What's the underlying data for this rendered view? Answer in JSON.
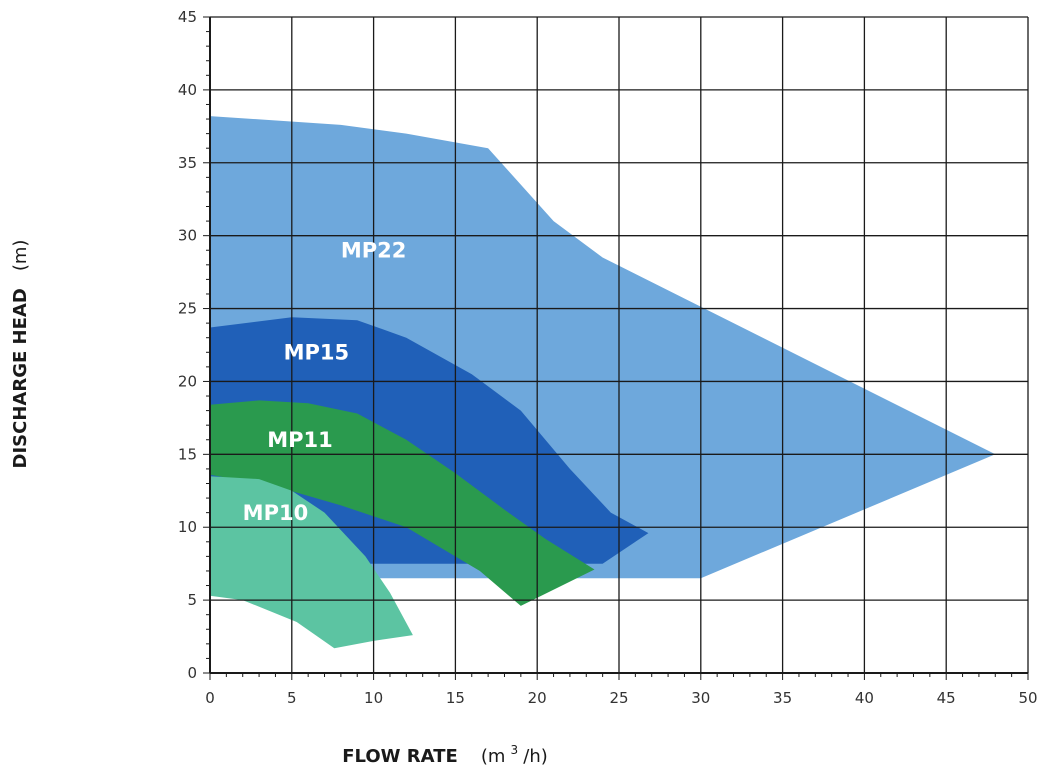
{
  "chart_data": {
    "type": "area",
    "title": "",
    "xlabel": {
      "main": "FLOW RATE",
      "unit_prefix": "(m",
      "unit_sup": "3",
      "unit_suffix": "/h)"
    },
    "ylabel": {
      "main": "DISCHARGE HEAD",
      "unit": "(m)"
    },
    "xlim": [
      0,
      50
    ],
    "ylim": [
      0,
      45
    ],
    "x_ticks": [
      0,
      5,
      10,
      15,
      20,
      25,
      30,
      35,
      40,
      45,
      50
    ],
    "y_ticks": [
      0,
      5,
      10,
      15,
      20,
      25,
      30,
      35,
      40,
      45
    ],
    "grid": true,
    "series": [
      {
        "name": "MP22",
        "color": "#6ea8dc",
        "label_at": [
          10,
          28.5
        ],
        "polygon": [
          [
            0,
            38.2
          ],
          [
            8,
            37.6
          ],
          [
            12,
            37
          ],
          [
            17,
            36
          ],
          [
            21,
            31
          ],
          [
            24,
            28.5
          ],
          [
            48,
            15
          ],
          [
            30,
            6.5
          ],
          [
            0,
            6.5
          ]
        ]
      },
      {
        "name": "MP15",
        "color": "#2060b8",
        "label_at": [
          6.5,
          21.5
        ],
        "polygon": [
          [
            0,
            23.7
          ],
          [
            5,
            24.4
          ],
          [
            9,
            24.2
          ],
          [
            12,
            23
          ],
          [
            16,
            20.5
          ],
          [
            19,
            18
          ],
          [
            22,
            14
          ],
          [
            24.5,
            11
          ],
          [
            26.8,
            9.6
          ],
          [
            24,
            7.5
          ],
          [
            0,
            7.5
          ]
        ]
      },
      {
        "name": "MP11",
        "color": "#2a9a4e",
        "label_at": [
          5.5,
          15.5
        ],
        "polygon": [
          [
            0,
            18.4
          ],
          [
            3,
            18.7
          ],
          [
            6,
            18.5
          ],
          [
            9,
            17.8
          ],
          [
            12,
            16
          ],
          [
            15,
            13.7
          ],
          [
            18,
            11.2
          ],
          [
            20.5,
            9.2
          ],
          [
            23.5,
            7.1
          ],
          [
            19,
            4.6
          ],
          [
            16.5,
            7
          ],
          [
            12,
            10
          ],
          [
            8,
            11.5
          ],
          [
            4,
            12.8
          ],
          [
            0,
            13.6
          ]
        ]
      },
      {
        "name": "MP10",
        "color": "#5cc4a2",
        "label_at": [
          4,
          10.5
        ],
        "polygon": [
          [
            0,
            13.5
          ],
          [
            3,
            13.3
          ],
          [
            5,
            12.5
          ],
          [
            7,
            11
          ],
          [
            9.5,
            8
          ],
          [
            11,
            5.5
          ],
          [
            12.4,
            2.6
          ],
          [
            10,
            2.2
          ],
          [
            7.6,
            1.7
          ],
          [
            5.3,
            3.5
          ],
          [
            2,
            5
          ],
          [
            0,
            5.3
          ]
        ]
      }
    ]
  }
}
